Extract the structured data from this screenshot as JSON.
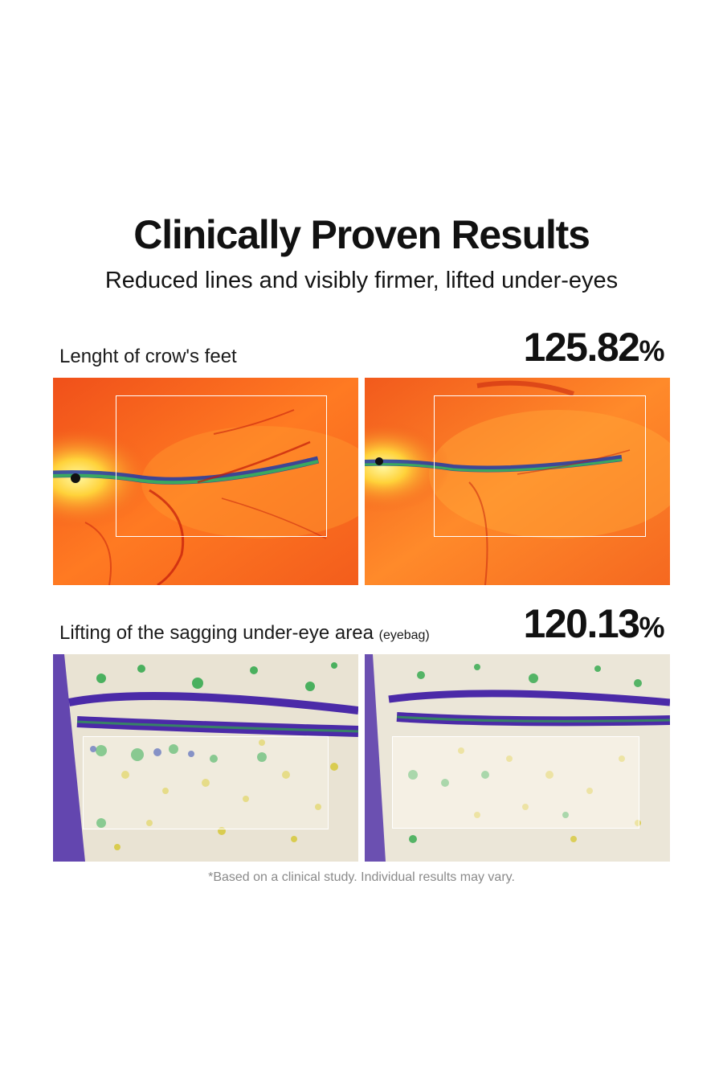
{
  "header": {
    "title": "Clinically Proven Results",
    "subtitle": "Reduced lines and visibly firmer, lifted under-eyes"
  },
  "results": [
    {
      "label": "Lenght of crow's feet",
      "label_suffix": "",
      "value": "125.82",
      "unit": "%",
      "images": [
        "before-thermal-crows-feet",
        "after-thermal-crows-feet"
      ]
    },
    {
      "label": "Lifting of the sagging under-eye area",
      "label_suffix": "(eyebag)",
      "value": "120.13",
      "unit": "%",
      "images": [
        "before-topography-eyebag",
        "after-topography-eyebag"
      ]
    }
  ],
  "footnote": "*Based on a clinical study. Individual results may vary.",
  "colors": {
    "thermal_base": "#f25a1c",
    "thermal_highlight": "#ff9a2e",
    "thermal_crease": "#c21a0c",
    "topo_base": "#e9e3d3",
    "topo_purple": "#4b2aa8",
    "topo_green": "#2fa84a",
    "topo_yellow": "#d7c83a",
    "roi_border": "#ffffff"
  }
}
